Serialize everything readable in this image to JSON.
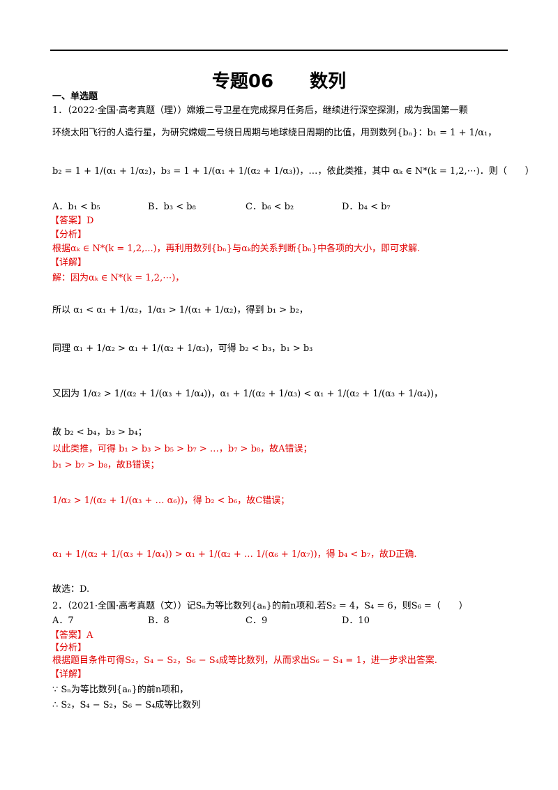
{
  "header": {
    "title": "专题06　　数列"
  },
  "section": "一、单选题",
  "questions": [
    {
      "stem": [
        "1．（2022·全国·高考真题（理））嫦娥二号卫星在完成探月任务后，继续进行深空探测，成为我国第一颗",
        "环绕太阳飞行的人造行星，为研究嫦娥二号绕日周期与地球绕日周期的比值，用到数列{bₙ}：b₁ = 1 + 1/α₁，",
        "b₂ = 1 + 1/(α₁ + 1/α₂)，b₃ = 1 + 1/(α₁ + 1/(α₂ + 1/α₃))，…，依此类推，其中 αₖ ∈ N*(k = 1,2,⋯)．则（　　）"
      ],
      "options": [
        "A．b₁ < b₅",
        "B．b₃ < b₈",
        "C．b₆ < b₂",
        "D．b₄ < b₇"
      ],
      "answer": "【答案】D",
      "analysis_label": "【分析】",
      "analysis": [
        "根据αₖ ∈ N*(k = 1,2,...)，再利用数列{bₙ}与αₖ的关系判断{bₙ}中各项的大小，即可求解."
      ],
      "detail_label": "【详解】",
      "detail": [
        "解：因为αₖ ∈ N*(k = 1,2,⋯)，",
        "所以 α₁ < α₁ + 1/α₂，1/α₁ > 1/(α₁ + 1/α₂)，得到 b₁ > b₂，",
        "同理 α₁ + 1/α₂ > α₁ + 1/(α₂ + 1/α₃)，可得 b₂ < b₃，b₁ > b₃",
        "又因为 1/α₂ > 1/(α₂ + 1/(α₃ + 1/α₄))，α₁ + 1/(α₂ + 1/α₃) < α₁ + 1/(α₂ + 1/(α₃ + 1/α₄))，",
        "故 b₂ < b₄，b₃ > b₄；",
        "以此类推，可得 b₁ > b₃ > b₅ > b₇ > …，b₇ > b₈，故A错误；",
        "b₁ > b₇ > b₈，故B错误；",
        "1/α₂ > 1/(α₂ + 1/(α₃ + … α₆))，得 b₂ < b₆，故C错误；",
        "α₁ + 1/(α₂ + 1/(α₃ + 1/α₄)) > α₁ + 1/(α₂ + … 1/(α₆ + 1/α₇))，得 b₄ < b₇，故D正确.",
        "故选：D."
      ]
    },
    {
      "stem": [
        "2．（2021·全国·高考真题（文））记Sₙ为等比数列{aₙ}的前n项和.若S₂ = 4，S₄ = 6，则S₆ =（　　）"
      ],
      "options": [
        "A．7",
        "B．8",
        "C．9",
        "D．10"
      ],
      "answer": "【答案】A",
      "analysis_label": "【分析】",
      "analysis": [
        "根据题目条件可得S₂，S₄ − S₂，S₆ − S₄成等比数列，从而求出S₆ − S₄ = 1，进一步求出答案."
      ],
      "detail_label": "【详解】",
      "detail": [
        "∵ Sₙ为等比数列{aₙ}的前n项和，",
        "∴ S₂，S₄ − S₂，S₆ − S₄成等比数列"
      ]
    }
  ]
}
